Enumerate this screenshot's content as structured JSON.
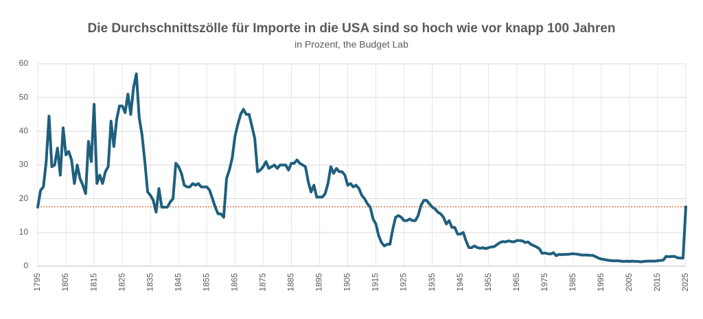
{
  "chart_data": {
    "type": "line",
    "title": "Die Durchschnittszölle für Importe in die USA sind so hoch wie vor knapp 100 Jahren",
    "subtitle": "in Prozent, the Budget Lab",
    "x": [
      1795,
      1796,
      1797,
      1798,
      1799,
      1800,
      1801,
      1802,
      1803,
      1804,
      1805,
      1806,
      1807,
      1808,
      1809,
      1810,
      1811,
      1812,
      1813,
      1814,
      1815,
      1816,
      1817,
      1818,
      1819,
      1820,
      1821,
      1822,
      1823,
      1824,
      1825,
      1826,
      1827,
      1828,
      1829,
      1830,
      1831,
      1832,
      1833,
      1834,
      1835,
      1836,
      1837,
      1838,
      1839,
      1840,
      1841,
      1842,
      1843,
      1844,
      1845,
      1846,
      1847,
      1848,
      1849,
      1850,
      1851,
      1852,
      1853,
      1854,
      1855,
      1856,
      1857,
      1858,
      1859,
      1860,
      1861,
      1862,
      1863,
      1864,
      1865,
      1866,
      1867,
      1868,
      1869,
      1870,
      1871,
      1872,
      1873,
      1874,
      1875,
      1876,
      1877,
      1878,
      1879,
      1880,
      1881,
      1882,
      1883,
      1884,
      1885,
      1886,
      1887,
      1888,
      1889,
      1890,
      1891,
      1892,
      1893,
      1894,
      1895,
      1896,
      1897,
      1898,
      1899,
      1900,
      1901,
      1902,
      1903,
      1904,
      1905,
      1906,
      1907,
      1908,
      1909,
      1910,
      1911,
      1912,
      1913,
      1914,
      1915,
      1916,
      1917,
      1918,
      1919,
      1920,
      1921,
      1922,
      1923,
      1924,
      1925,
      1926,
      1927,
      1928,
      1929,
      1930,
      1931,
      1932,
      1933,
      1934,
      1935,
      1936,
      1937,
      1938,
      1939,
      1940,
      1941,
      1942,
      1943,
      1944,
      1945,
      1946,
      1947,
      1948,
      1949,
      1950,
      1951,
      1952,
      1953,
      1954,
      1955,
      1956,
      1957,
      1958,
      1959,
      1960,
      1961,
      1962,
      1963,
      1964,
      1965,
      1966,
      1967,
      1968,
      1969,
      1970,
      1971,
      1972,
      1973,
      1974,
      1975,
      1976,
      1977,
      1978,
      1979,
      1980,
      1981,
      1982,
      1983,
      1984,
      1985,
      1986,
      1987,
      1988,
      1989,
      1990,
      1991,
      1992,
      1993,
      1994,
      1995,
      1996,
      1997,
      1998,
      1999,
      2000,
      2001,
      2002,
      2003,
      2004,
      2005,
      2006,
      2007,
      2008,
      2009,
      2010,
      2011,
      2012,
      2013,
      2014,
      2015,
      2016,
      2017,
      2018,
      2019,
      2020,
      2021,
      2022,
      2023,
      2024,
      2025
    ],
    "values": [
      17.5,
      22.5,
      23.5,
      31,
      44.5,
      29.5,
      30,
      35,
      27,
      41,
      33,
      34,
      31.5,
      24.5,
      30,
      26,
      24,
      21.5,
      37,
      31,
      48,
      24.5,
      27,
      24.5,
      28,
      29.5,
      43,
      35.5,
      43.5,
      47.5,
      47.5,
      45.5,
      51,
      45,
      53,
      57,
      44,
      39,
      31,
      22,
      21,
      19.5,
      16,
      23,
      17.5,
      17.5,
      17.5,
      19,
      20,
      30.5,
      29.5,
      27.5,
      24,
      23.5,
      23.5,
      24.5,
      24,
      24.5,
      23.5,
      23.5,
      23.5,
      22.5,
      20,
      17.5,
      15.5,
      15.5,
      14.5,
      26,
      28.5,
      32,
      38.5,
      42,
      45,
      46.5,
      45,
      45,
      41.5,
      38,
      28,
      28.5,
      29.5,
      31,
      29,
      29.5,
      30,
      29,
      30,
      30,
      30,
      28.5,
      30.5,
      30.5,
      31.5,
      30.5,
      30,
      29.5,
      25,
      22,
      24,
      20.5,
      20.5,
      20.5,
      21.5,
      24.5,
      29.5,
      27.5,
      29,
      28,
      28,
      27,
      24,
      24.5,
      23.5,
      24,
      23,
      21,
      20,
      18.5,
      17.5,
      14,
      12.5,
      9,
      7,
      6,
      6.5,
      6.5,
      11,
      14.5,
      15,
      14.5,
      13.5,
      13.5,
      14,
      13.5,
      13.5,
      15,
      18,
      19.5,
      19.5,
      18.5,
      17.5,
      17,
      16,
      15.5,
      14.5,
      12.5,
      13.5,
      11.5,
      11.5,
      9.5,
      9.5,
      10,
      7.5,
      5.5,
      5.5,
      6,
      5.5,
      5.3,
      5.5,
      5.2,
      5.5,
      5.7,
      5.8,
      6.4,
      7,
      7.3,
      7.2,
      7.5,
      7.3,
      7.2,
      7.6,
      7.6,
      7.5,
      7,
      7.2,
      6.5,
      6.1,
      5.7,
      5.2,
      3.8,
      3.9,
      3.7,
      3.6,
      4,
      3.1,
      3.5,
      3.4,
      3.5,
      3.5,
      3.6,
      3.7,
      3.6,
      3.5,
      3.3,
      3.3,
      3.3,
      3.2,
      3.2,
      2.8,
      2.4,
      2.1,
      2,
      1.8,
      1.7,
      1.6,
      1.6,
      1.6,
      1.5,
      1.4,
      1.5,
      1.4,
      1.5,
      1.4,
      1.4,
      1.3,
      1.4,
      1.5,
      1.5,
      1.5,
      1.5,
      1.6,
      1.7,
      1.8,
      2.9,
      2.8,
      2.9,
      2.9,
      2.5,
      2.4,
      2.4,
      17.6
    ],
    "color": "#1f5f7d",
    "reference_line": {
      "value": 17.6,
      "color": "#e0602a"
    },
    "xlim": [
      1795,
      2025
    ],
    "xticks": [
      1795,
      1805,
      1815,
      1825,
      1835,
      1845,
      1855,
      1865,
      1875,
      1885,
      1895,
      1905,
      1915,
      1925,
      1935,
      1945,
      1955,
      1965,
      1975,
      1985,
      1995,
      2005,
      2015,
      2025
    ],
    "ylim": [
      0,
      60
    ],
    "yticks": [
      0,
      10,
      20,
      30,
      40,
      50,
      60
    ],
    "grid": true
  }
}
